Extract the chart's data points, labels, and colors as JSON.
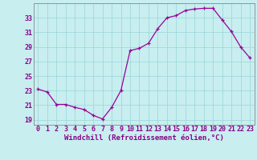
{
  "x": [
    0,
    1,
    2,
    3,
    4,
    5,
    6,
    7,
    8,
    9,
    10,
    11,
    12,
    13,
    14,
    15,
    16,
    17,
    18,
    19,
    20,
    21,
    22,
    23
  ],
  "y": [
    23.2,
    22.8,
    21.1,
    21.1,
    20.7,
    20.4,
    19.6,
    19.1,
    20.7,
    23.0,
    28.5,
    28.8,
    29.5,
    31.5,
    33.0,
    33.3,
    34.0,
    34.2,
    34.3,
    34.3,
    32.7,
    31.1,
    29.0,
    27.5
  ],
  "line_color": "#990099",
  "marker": "+",
  "bg_color": "#c8eef0",
  "grid_color": "#a0d8dc",
  "xlabel": "Windchill (Refroidissement éolien,°C)",
  "yticks": [
    19,
    21,
    23,
    25,
    27,
    29,
    31,
    33
  ],
  "xticks": [
    0,
    1,
    2,
    3,
    4,
    5,
    6,
    7,
    8,
    9,
    10,
    11,
    12,
    13,
    14,
    15,
    16,
    17,
    18,
    19,
    20,
    21,
    22,
    23
  ],
  "ylim": [
    18.3,
    35.0
  ],
  "xlim": [
    -0.5,
    23.5
  ],
  "tick_color": "#880088",
  "label_fontsize": 6.5,
  "tick_fontsize": 6.0,
  "spine_color": "#888888"
}
